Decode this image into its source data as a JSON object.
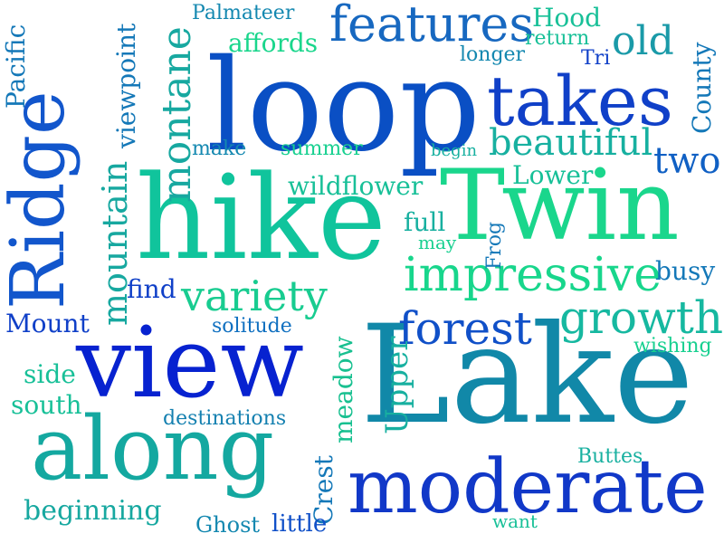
{
  "words": [
    {
      "text": "loop",
      "color": "#0a4fc4"
    },
    {
      "text": "Lake",
      "color": "#1188a8"
    },
    {
      "text": "hike",
      "color": "#10c49c"
    },
    {
      "text": "Twin",
      "color": "#1ad68c"
    },
    {
      "text": "view",
      "color": "#0722d0"
    },
    {
      "text": "along",
      "color": "#14a8a0"
    },
    {
      "text": "Ridge",
      "color": "#1256cc"
    },
    {
      "text": "moderate",
      "color": "#1138c8"
    },
    {
      "text": "takes",
      "color": "#1040c8"
    },
    {
      "text": "features",
      "color": "#1768c0"
    },
    {
      "text": "impressive",
      "color": "#18d68c"
    },
    {
      "text": "montane",
      "color": "#17a8a0"
    },
    {
      "text": "growth",
      "color": "#16b8a0"
    },
    {
      "text": "forest",
      "color": "#1050c8"
    },
    {
      "text": "variety",
      "color": "#18cc90"
    },
    {
      "text": "mountain",
      "color": "#17a8a0"
    },
    {
      "text": "beautiful",
      "color": "#17b0a0"
    },
    {
      "text": "old",
      "color": "#1a9aa8"
    },
    {
      "text": "two",
      "color": "#1060c4"
    },
    {
      "text": "Upper",
      "color": "#18b0a0"
    },
    {
      "text": "meadow",
      "color": "#18c090"
    },
    {
      "text": "beginning",
      "color": "#17a8a0"
    },
    {
      "text": "destinations",
      "color": "#1480b0"
    },
    {
      "text": "wildflower",
      "color": "#18c098"
    },
    {
      "text": "affords",
      "color": "#1ad68c"
    },
    {
      "text": "Mount",
      "color": "#1040c8"
    },
    {
      "text": "south",
      "color": "#18c098"
    },
    {
      "text": "side",
      "color": "#18c098"
    },
    {
      "text": "solitude",
      "color": "#1070c0"
    },
    {
      "text": "Palmateer",
      "color": "#1488b0"
    },
    {
      "text": "Hood",
      "color": "#18c098"
    },
    {
      "text": "return",
      "color": "#18c098"
    },
    {
      "text": "viewpoint",
      "color": "#1478b8"
    },
    {
      "text": "Pacific",
      "color": "#1478b8"
    },
    {
      "text": "make",
      "color": "#1488b0"
    },
    {
      "text": "summer",
      "color": "#18d090"
    },
    {
      "text": "begin",
      "color": "#18b0a0"
    },
    {
      "text": "Lower",
      "color": "#18c098"
    },
    {
      "text": "full",
      "color": "#18b0a0"
    },
    {
      "text": "may",
      "color": "#18d090"
    },
    {
      "text": "Frog",
      "color": "#1478b8"
    },
    {
      "text": "busy",
      "color": "#1478b8"
    },
    {
      "text": "wishing",
      "color": "#18d090"
    },
    {
      "text": "County",
      "color": "#1478b8"
    },
    {
      "text": "Tri",
      "color": "#1040c8"
    },
    {
      "text": "longer",
      "color": "#1488b0"
    },
    {
      "text": "find",
      "color": "#1040c8"
    },
    {
      "text": "Crest",
      "color": "#1478b8"
    },
    {
      "text": "Ghost",
      "color": "#1488b0"
    },
    {
      "text": "little",
      "color": "#1050c8"
    },
    {
      "text": "Buttes",
      "color": "#18b0a0"
    },
    {
      "text": "want",
      "color": "#18c098"
    }
  ]
}
